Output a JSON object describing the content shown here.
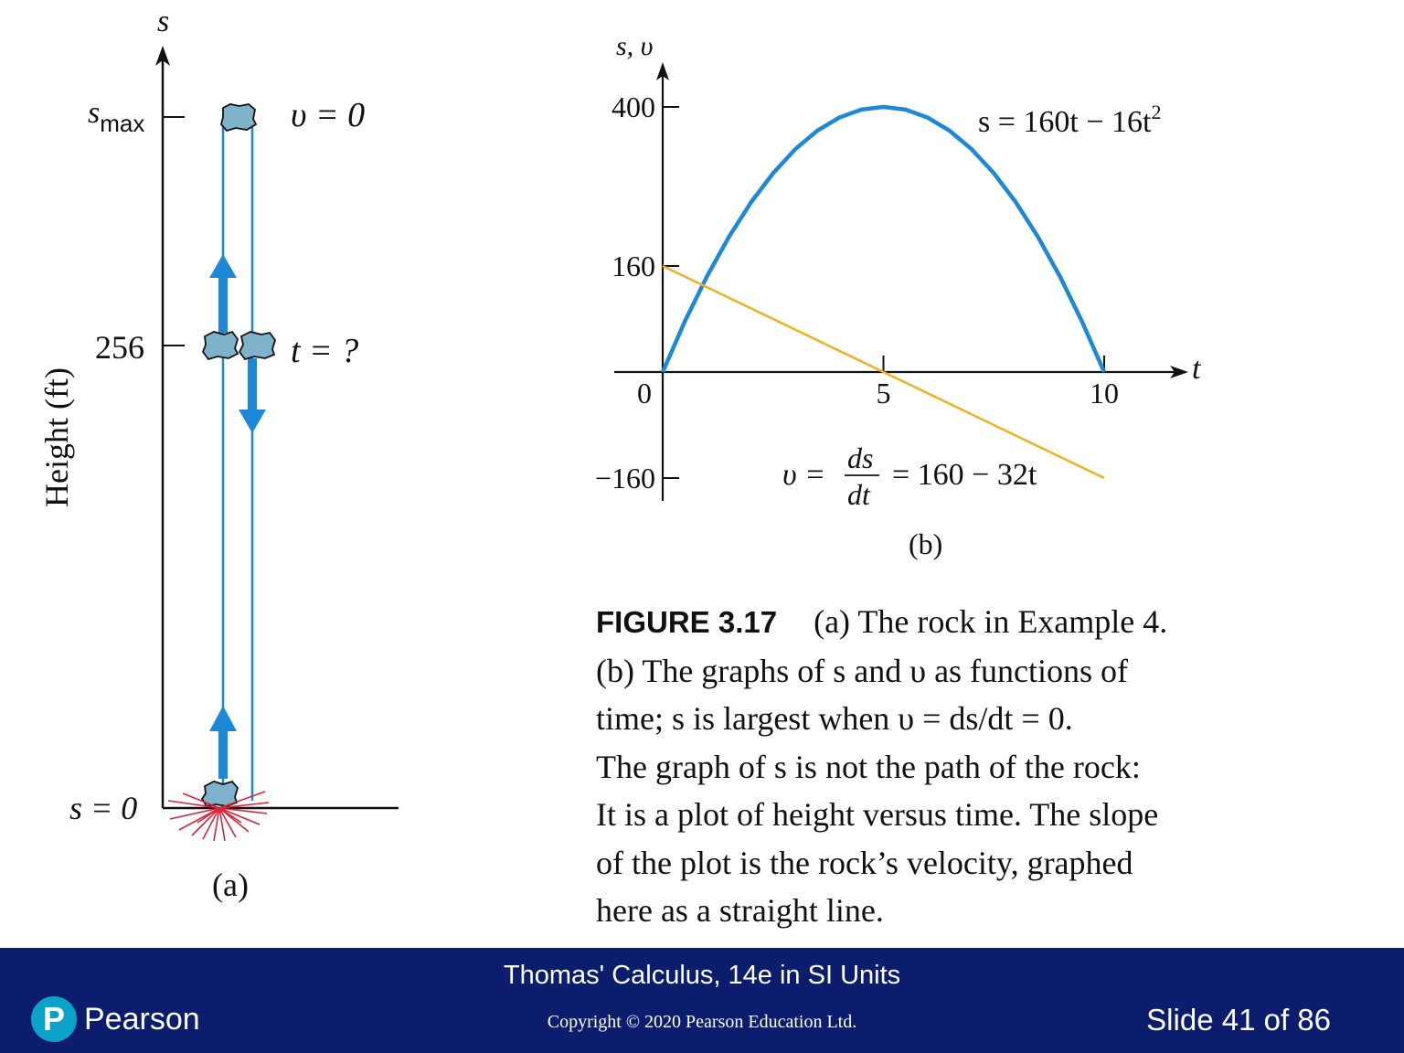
{
  "panel_a": {
    "axis_label": "s",
    "height_label": "Height (ft)",
    "tick_smax_base": "s",
    "tick_smax_sub": "max",
    "tick_256": "256",
    "tick_zero": "s = 0",
    "label_v0": "υ = 0",
    "label_t": "t = ?",
    "panel_label": "(a)"
  },
  "panel_b": {
    "y_axis_label": "s, υ",
    "x_axis_label": "t",
    "s_equation": "s = 160t − 16t",
    "s_equation_sup": "2",
    "v_prefix": "υ =",
    "v_frac_num": "ds",
    "v_frac_den": "dt",
    "v_suffix": "= 160 − 32t",
    "panel_label": "(b)"
  },
  "chart_data": {
    "type": "line",
    "x_ticks": [
      "0",
      "5",
      "10"
    ],
    "y_ticks": [
      "400",
      "160",
      "−160"
    ],
    "xlim": [
      0,
      10
    ],
    "ylim": [
      -160,
      400
    ],
    "grid": false,
    "series": [
      {
        "name": "s = 160t − 16t²",
        "color": "#1e88d8",
        "x": [
          0,
          0.5,
          1,
          1.5,
          2,
          2.5,
          3,
          3.5,
          4,
          4.5,
          5,
          5.5,
          6,
          6.5,
          7,
          7.5,
          8,
          8.5,
          9,
          9.5,
          10
        ],
        "y": [
          0,
          76,
          144,
          204,
          256,
          300,
          336,
          364,
          384,
          396,
          400,
          396,
          384,
          364,
          336,
          300,
          256,
          204,
          144,
          76,
          0
        ]
      },
      {
        "name": "υ = ds/dt = 160 − 32t",
        "color": "#f2b01e",
        "x": [
          0,
          10
        ],
        "y": [
          160,
          -160
        ]
      }
    ]
  },
  "caption": {
    "figure_label": "FIGURE 3.17",
    "lines": [
      "(a) The rock in Example 4.",
      "(b) The graphs of s and υ as functions of",
      "time; s is largest when υ = ds/dt = 0.",
      "The graph of s is not the path of the rock:",
      "It is a plot of height versus time. The slope",
      "of the plot is the rock’s velocity, graphed",
      "here as a straight line."
    ]
  },
  "footer": {
    "book_title": "Thomas' Calculus, 14e in SI Units",
    "copyright": "Copyright © 2020 Pearson Education Ltd.",
    "slide_counter": "Slide 41 of 86",
    "logo_mark": "P",
    "logo_text": "Pearson"
  },
  "colors": {
    "footer_bg": "#0d1d6e",
    "s_curve": "#1e88d8",
    "v_line": "#f2b01e",
    "rock": "#7fb3cc",
    "impact": "#d8253a"
  }
}
